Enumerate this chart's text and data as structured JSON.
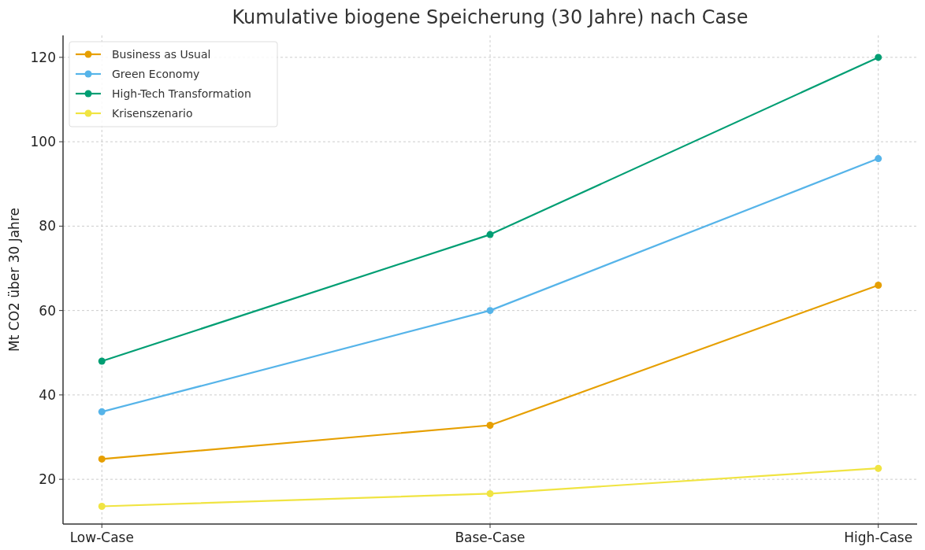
{
  "chart_data": {
    "type": "line",
    "title": "Kumulative biogene Speicherung (30 Jahre) nach Case",
    "ylabel": "Mt CO2 über 30 Jahre",
    "categories": [
      "Low-Case",
      "Base-Case",
      "High-Case"
    ],
    "series": [
      {
        "name": "Business as Usual",
        "color": "#e69f00",
        "values": [
          24.8,
          32.8,
          66
        ]
      },
      {
        "name": "Green Economy",
        "color": "#56b4e9",
        "values": [
          36,
          60,
          96
        ]
      },
      {
        "name": "High-Tech Transformation",
        "color": "#009e73",
        "values": [
          48,
          78,
          120
        ]
      },
      {
        "name": "Krisenszenario",
        "color": "#f0e442",
        "values": [
          13.6,
          16.6,
          22.6
        ]
      }
    ],
    "ylim": [
      9.4,
      125.2
    ],
    "yticks": [
      20,
      40,
      60,
      80,
      100,
      120
    ],
    "grid": true,
    "legend": "top left",
    "marker": "circle",
    "line_style": "solid"
  }
}
